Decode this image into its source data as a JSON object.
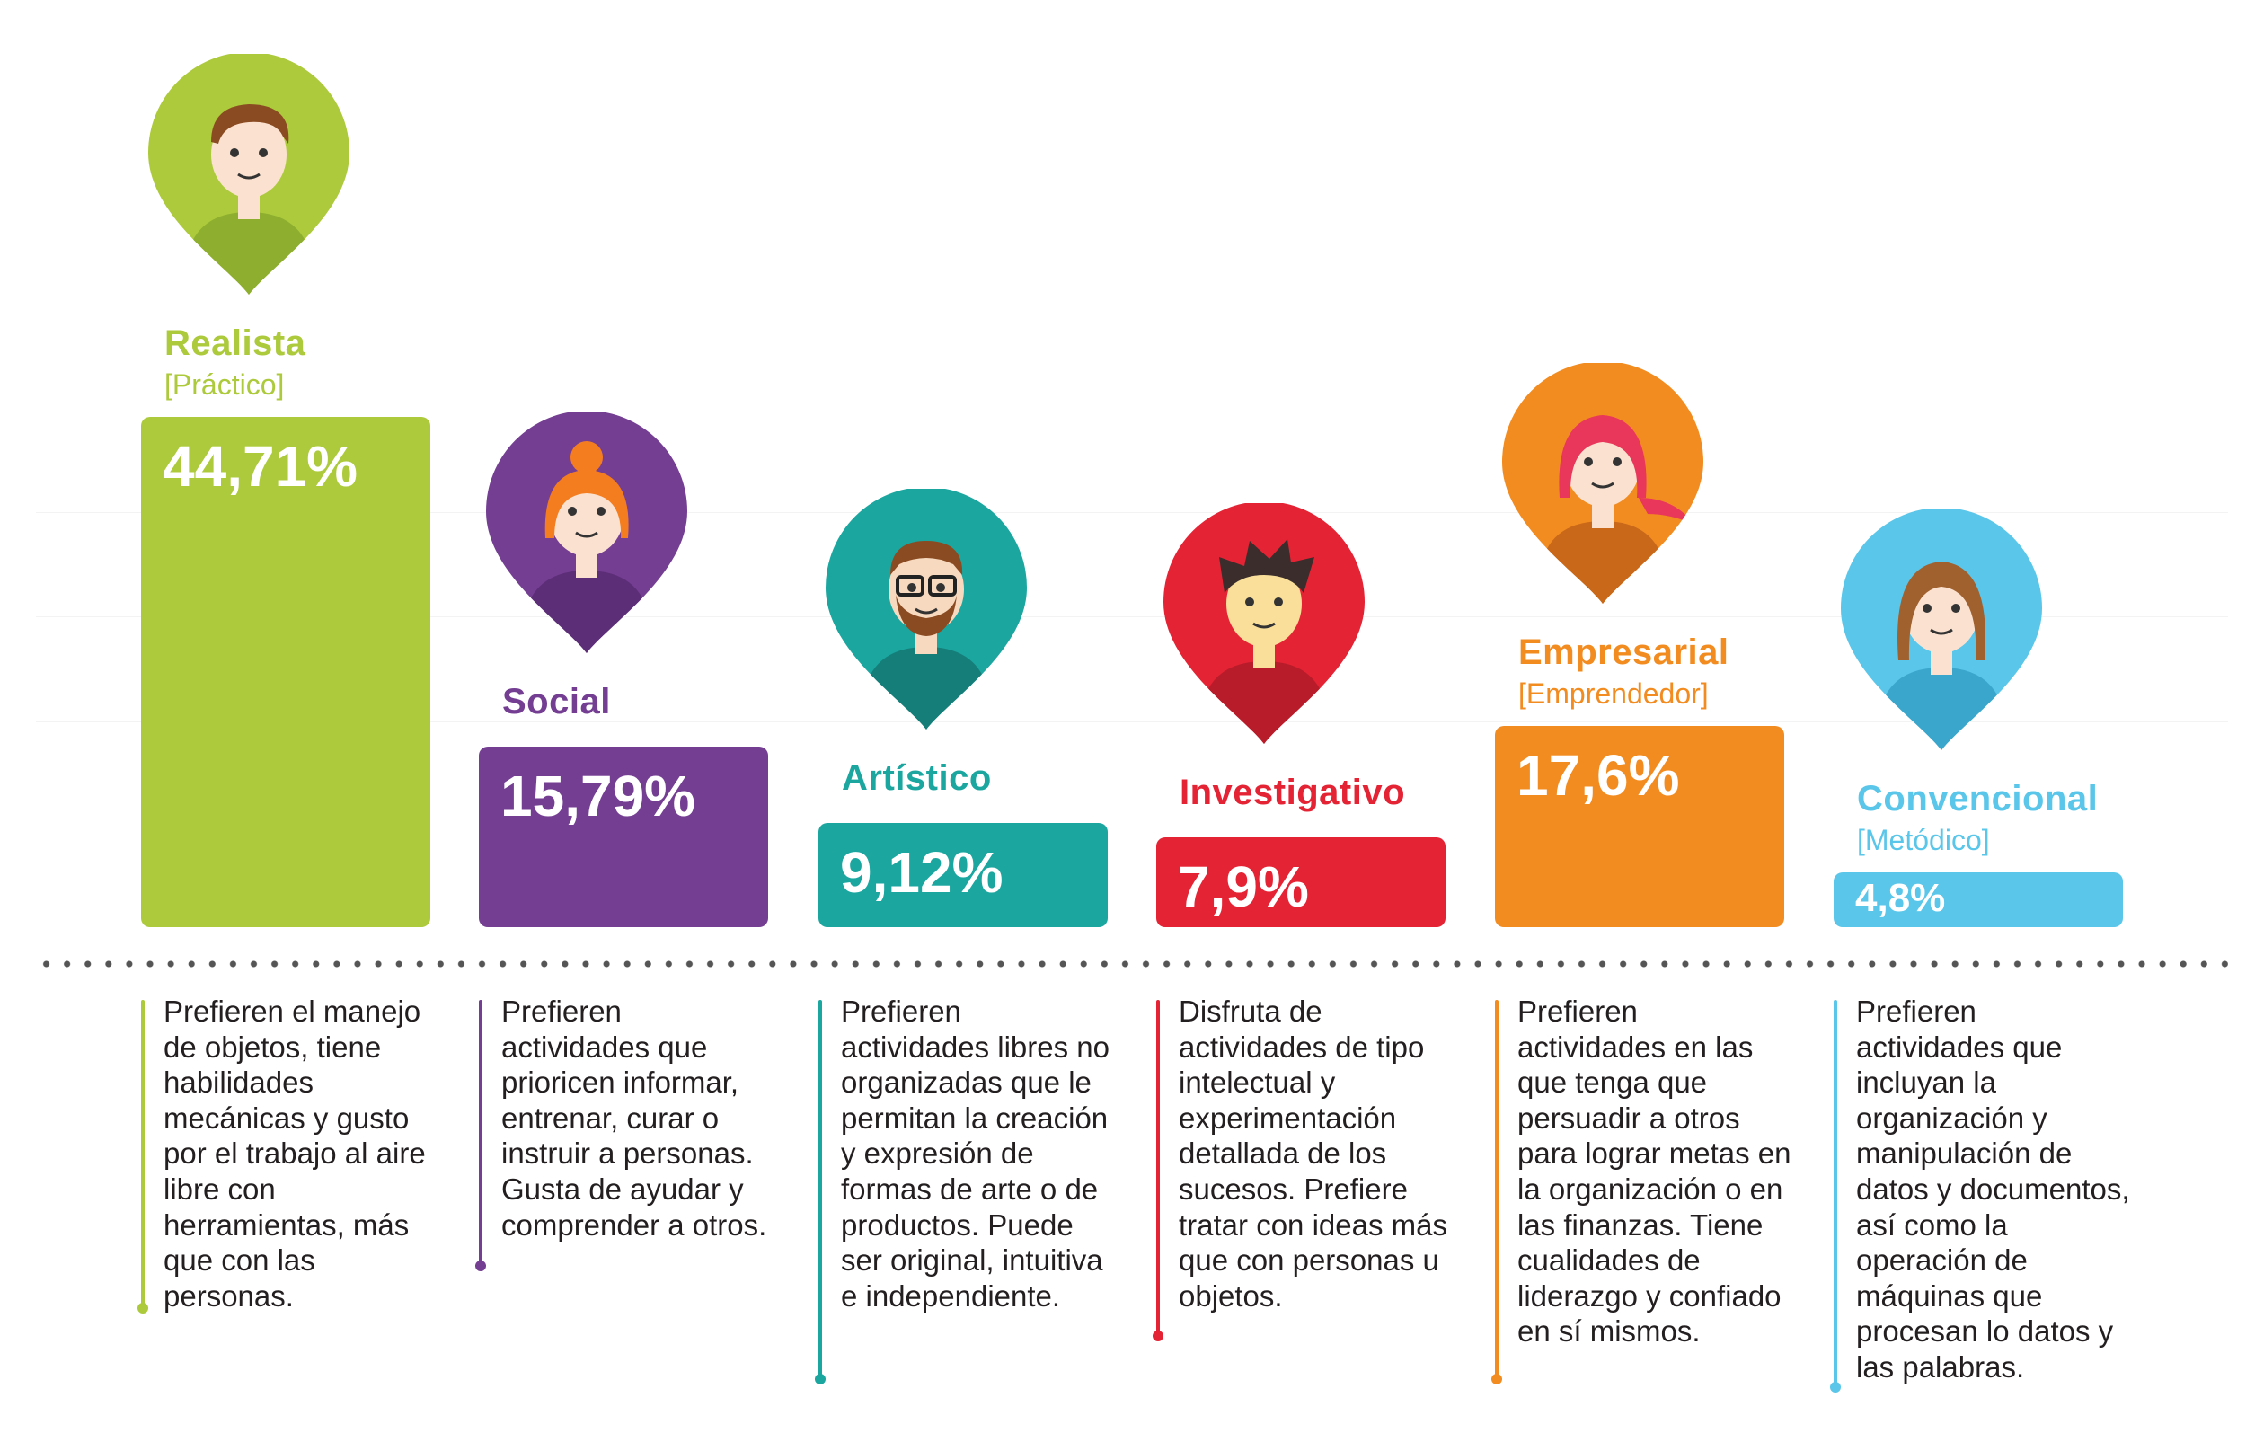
{
  "chart_data": {
    "type": "bar",
    "categories": [
      "Realista",
      "Social",
      "Artístico",
      "Investigativo",
      "Empresarial",
      "Convencional"
    ],
    "subtitles": [
      "[Práctico]",
      "",
      "",
      "",
      "[Emprendedor]",
      "[Metódico]"
    ],
    "values": [
      44.71,
      15.79,
      9.12,
      7.9,
      17.6,
      4.8
    ],
    "value_labels": [
      "44,71%",
      "15,79%",
      "9,12%",
      "7,9%",
      "17,6%",
      "4,8%"
    ],
    "unit": "%",
    "colors": [
      "#acca3b",
      "#743e93",
      "#1ba6a0",
      "#e42334",
      "#f28c21",
      "#5ac6e9"
    ],
    "icons": [
      "avatar-brown-hair-boy-icon",
      "avatar-orange-bun-glasses-girl-icon",
      "avatar-bearded-glasses-man-icon",
      "avatar-spiky-hair-boy-icon",
      "avatar-pink-hair-woman-icon",
      "avatar-long-brown-hair-woman-icon"
    ],
    "descriptions": [
      "Prefieren el manejo de objetos, tiene habilidades mecánicas y gusto por el trabajo al aire libre con herramientas, más que con las personas.",
      "Prefieren actividades que prioricen informar, entrenar, curar o instruir a personas. Gusta de ayudar y comprender a otros.",
      "Prefieren actividades libres no organizadas que le permitan la creación y expresión de formas de arte o de productos. Puede ser original, intuitiva e independiente.",
      "Disfruta de actividades de tipo intelectual y experimentación detallada de los sucesos. Prefiere tratar con ideas más que con personas u objetos.",
      "Prefieren actividades en las que tenga que persuadir a otros para lograr metas en la organización o en las finanzas. Tiene cualidades de liderazgo y confiado en sí mismos.",
      "Prefieren actividades que incluyan la organización y manipulación de datos y documentos, así como la operación de máquinas que procesan lo datos y las palabras."
    ],
    "title": "",
    "xlabel": "",
    "ylabel": "",
    "ylim": [
      0,
      50
    ],
    "grid": true,
    "legend": "none"
  }
}
